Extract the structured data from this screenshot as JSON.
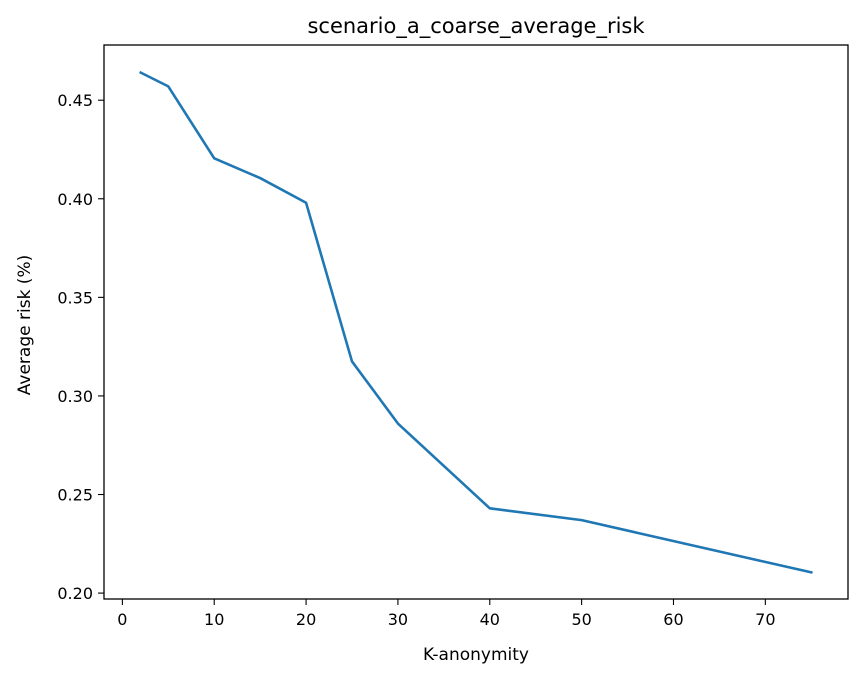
{
  "chart_data": {
    "type": "line",
    "title": "scenario_a_coarse_average_risk",
    "xlabel": "K-anonymity",
    "ylabel": "Average risk (%)",
    "xlim": [
      -2,
      79
    ],
    "ylim": [
      0.197,
      0.478
    ],
    "grid": false,
    "x_ticks": [
      0,
      10,
      20,
      30,
      40,
      50,
      60,
      70
    ],
    "y_ticks": [
      0.2,
      0.25,
      0.3,
      0.35,
      0.4,
      0.45
    ],
    "x_tick_labels": [
      "0",
      "10",
      "20",
      "30",
      "40",
      "50",
      "60",
      "70"
    ],
    "y_tick_labels": [
      "0.20",
      "0.25",
      "0.30",
      "0.35",
      "0.40",
      "0.45"
    ],
    "series": [
      {
        "color": "#1f77b4",
        "x": [
          2,
          5,
          10,
          15,
          20,
          25,
          30,
          40,
          50,
          75
        ],
        "values": [
          0.464,
          0.457,
          0.4205,
          0.4105,
          0.398,
          0.3175,
          0.286,
          0.243,
          0.237,
          0.2105
        ]
      }
    ]
  }
}
